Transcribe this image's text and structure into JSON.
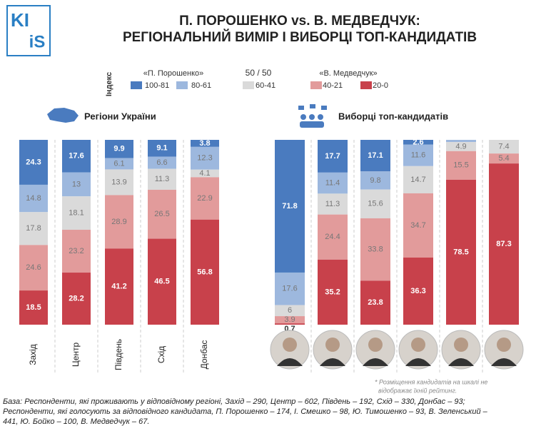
{
  "header": {
    "logo": [
      "KI",
      "iS"
    ],
    "title": [
      "П. ПОРОШЕНКО vs. В. МЕДВЕДЧУК:",
      "РЕГІОНАЛЬНИЙ ВИМІР І ВИБОРЦІ ТОП-КАНДИДАТІВ"
    ]
  },
  "legend": {
    "title": "Індекс",
    "left_pole": "«П. Порошенко»",
    "middle": "50 / 50",
    "right_pole": "«В. Медведчук»"
  },
  "chart_data": [
    {
      "type": "bar",
      "stacked": true,
      "title": "Регіони України",
      "categories": [
        "Захід",
        "Центр",
        "Південь",
        "Схід",
        "Донбас"
      ],
      "series": [
        {
          "name": "100-81",
          "color": "#4a7bbf",
          "values": [
            24.3,
            17.6,
            9.9,
            9.1,
            3.8
          ]
        },
        {
          "name": "80-61",
          "color": "#9db8de",
          "values": [
            14.8,
            13,
            6.1,
            6.6,
            12.3
          ]
        },
        {
          "name": "60-41",
          "color": "#dadada",
          "values": [
            17.8,
            18.1,
            13.9,
            11.3,
            4.1
          ]
        },
        {
          "name": "40-21",
          "color": "#e29b9b",
          "values": [
            24.6,
            23.2,
            28.9,
            26.5,
            22.9
          ]
        },
        {
          "name": "20-0",
          "color": "#c8414b",
          "values": [
            18.5,
            28.2,
            41.2,
            46.5,
            56.8
          ]
        }
      ]
    },
    {
      "type": "bar",
      "stacked": true,
      "title": "Виборці топ-кандидатів",
      "categories": [
        null,
        null,
        null,
        null,
        null,
        null
      ],
      "series": [
        {
          "color": "#4a7bbf",
          "values": [
            71.8,
            17.7,
            17.1,
            2.6,
            null,
            null
          ]
        },
        {
          "color": "#9db8de",
          "values": [
            17.6,
            11.4,
            9.8,
            11.6,
            1.2,
            null
          ]
        },
        {
          "color": "#dadada",
          "values": [
            6,
            11.3,
            15.6,
            14.7,
            4.9,
            7.4
          ]
        },
        {
          "color": "#e29b9b",
          "values": [
            3.9,
            24.4,
            33.8,
            34.7,
            15.5,
            5.4
          ]
        },
        {
          "color": "#c8414b",
          "values": [
            0.7,
            35.2,
            23.8,
            36.3,
            78.5,
            87.3
          ]
        }
      ],
      "footnote": [
        "* Розміщення кандидатів на шкалі не",
        "відображає їхній рейтинг."
      ]
    }
  ],
  "base": [
    "База: Респонденти, які проживають у відповідному регіоні, Захід – 290, Центр – 602, Південь – 192, Схід – 330, Донбас – 93;",
    "Респонденти, які голосують за відповідного кандидата, П. Порошенко – 174, І. Смешко – 98, Ю. Тимошенко – 93, В. Зеленський –",
    "441, Ю. Бойко – 100, В. Медведчук – 67."
  ]
}
